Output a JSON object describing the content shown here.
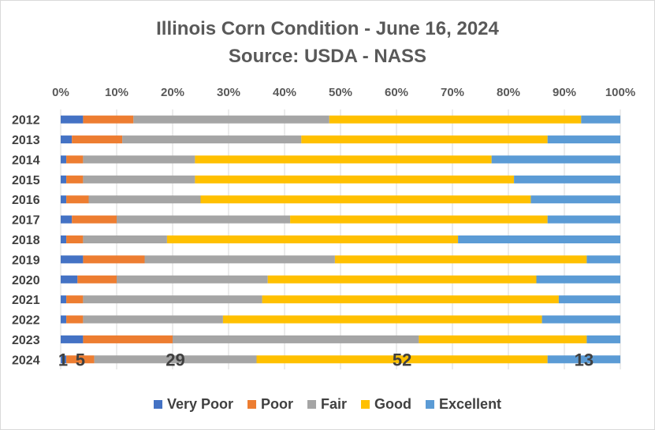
{
  "chart_data": {
    "type": "bar",
    "orientation": "horizontal",
    "stacked": "percent",
    "title": "Illinois Corn Condition - June 16, 2024",
    "subtitle": "Source: USDA - NASS",
    "xlabel": "",
    "ylabel": "",
    "xlim": [
      0,
      100
    ],
    "x_ticks": [
      "0%",
      "10%",
      "20%",
      "30%",
      "40%",
      "50%",
      "60%",
      "70%",
      "80%",
      "90%",
      "100%"
    ],
    "grid": true,
    "legend_position": "bottom",
    "categories": [
      "2012",
      "2013",
      "2014",
      "2015",
      "2016",
      "2017",
      "2018",
      "2019",
      "2020",
      "2021",
      "2022",
      "2023",
      "2024"
    ],
    "series": [
      {
        "name": "Very Poor",
        "color": "#4472C4",
        "values": [
          4,
          2,
          1,
          1,
          1,
          2,
          1,
          4,
          3,
          1,
          1,
          4,
          1
        ]
      },
      {
        "name": "Poor",
        "color": "#ED7D31",
        "values": [
          9,
          9,
          3,
          3,
          4,
          8,
          3,
          11,
          7,
          3,
          3,
          16,
          5
        ]
      },
      {
        "name": "Fair",
        "color": "#A5A5A5",
        "values": [
          35,
          32,
          20,
          20,
          20,
          31,
          15,
          34,
          27,
          32,
          25,
          44,
          29
        ]
      },
      {
        "name": "Good",
        "color": "#FFC000",
        "values": [
          45,
          44,
          53,
          57,
          59,
          46,
          52,
          45,
          48,
          53,
          57,
          30,
          52
        ]
      },
      {
        "name": "Excellent",
        "color": "#5B9BD5",
        "values": [
          7,
          13,
          23,
          19,
          16,
          13,
          29,
          6,
          15,
          11,
          14,
          6,
          13
        ]
      }
    ],
    "annotations": {
      "row": "2024",
      "labels": [
        "1",
        "5",
        "29",
        "52",
        "13"
      ]
    }
  }
}
